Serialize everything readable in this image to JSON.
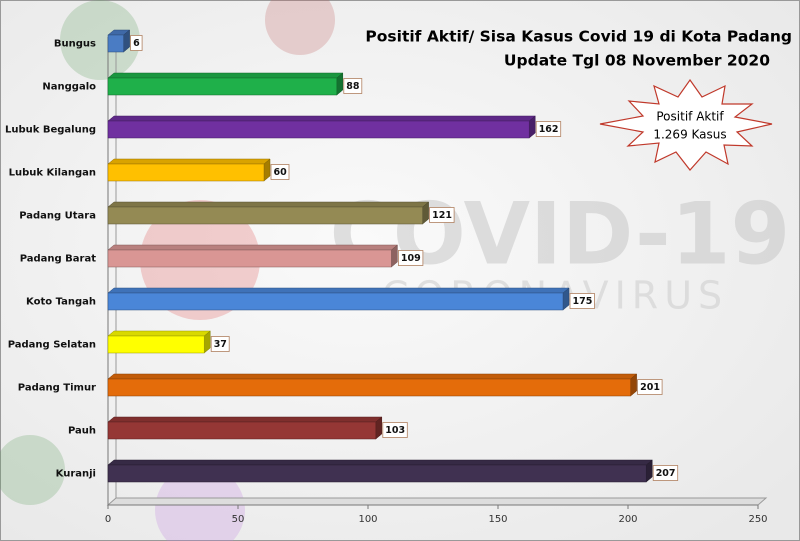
{
  "chart_data": {
    "type": "bar",
    "orientation": "horizontal",
    "title": "Positif Aktif/ Sisa Kasus Covid 19 di Kota Padang",
    "subtitle": "Update Tgl 08 November  2020",
    "annotation": [
      "Positif  Aktif",
      "1.269 Kasus"
    ],
    "watermark": [
      "COVID-19",
      "CORONAVIRUS"
    ],
    "categories": [
      "Bungus",
      "Nanggalo",
      "Lubuk Begalung",
      "Lubuk Kilangan",
      "Padang Utara",
      "Padang Barat",
      "Koto Tangah",
      "Padang Selatan",
      "Padang Timur",
      "Pauh",
      "Kuranji"
    ],
    "values": [
      6,
      88,
      162,
      60,
      121,
      109,
      175,
      37,
      201,
      103,
      207
    ],
    "colors": [
      "#4a7cc4",
      "#1fb04a",
      "#7030a0",
      "#ffc000",
      "#948a54",
      "#d99694",
      "#4a86d8",
      "#ffff00",
      "#e46c0a",
      "#953735",
      "#403151"
    ],
    "xlim": [
      0,
      250
    ],
    "xticks": [
      0,
      50,
      100,
      150,
      200,
      250
    ],
    "grid": false
  }
}
